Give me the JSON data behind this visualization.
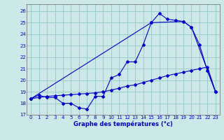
{
  "title": "Graphe des températures (°c)",
  "bg_color": "#cce8e8",
  "grid_color": "#99cccc",
  "line_color": "#0000cc",
  "xlim": [
    -0.5,
    23.5
  ],
  "ylim": [
    17,
    26.6
  ],
  "yticks": [
    17,
    18,
    19,
    20,
    21,
    22,
    23,
    24,
    25,
    26
  ],
  "xticks": [
    0,
    1,
    2,
    3,
    4,
    5,
    6,
    7,
    8,
    9,
    10,
    11,
    12,
    13,
    14,
    15,
    16,
    17,
    18,
    19,
    20,
    21,
    22,
    23
  ],
  "series1_x": [
    0,
    1,
    2,
    3,
    4,
    5,
    6,
    7,
    8,
    9,
    10,
    11,
    12,
    13,
    14,
    15,
    16,
    17,
    18,
    19,
    20,
    21,
    22,
    23
  ],
  "series1_y": [
    18.4,
    18.7,
    18.5,
    18.5,
    18.0,
    18.0,
    17.6,
    17.5,
    18.6,
    18.6,
    20.2,
    20.5,
    21.6,
    21.6,
    23.1,
    25.0,
    25.8,
    25.3,
    25.2,
    25.1,
    24.6,
    23.1,
    20.8,
    19.0
  ],
  "series2_x": [
    0,
    1,
    2,
    3,
    4,
    5,
    6,
    7,
    8,
    9,
    10,
    11,
    12,
    13,
    14,
    15,
    16,
    17,
    18,
    19,
    20,
    21,
    22,
    23
  ],
  "series2_y": [
    18.4,
    18.5,
    18.6,
    18.65,
    18.7,
    18.75,
    18.8,
    18.85,
    18.9,
    19.0,
    19.15,
    19.3,
    19.5,
    19.6,
    19.8,
    20.0,
    20.2,
    20.4,
    20.55,
    20.7,
    20.85,
    21.0,
    21.15,
    19.0
  ],
  "series3_x": [
    0,
    15,
    19,
    20,
    23
  ],
  "series3_y": [
    18.4,
    25.0,
    25.1,
    24.6,
    19.0
  ]
}
